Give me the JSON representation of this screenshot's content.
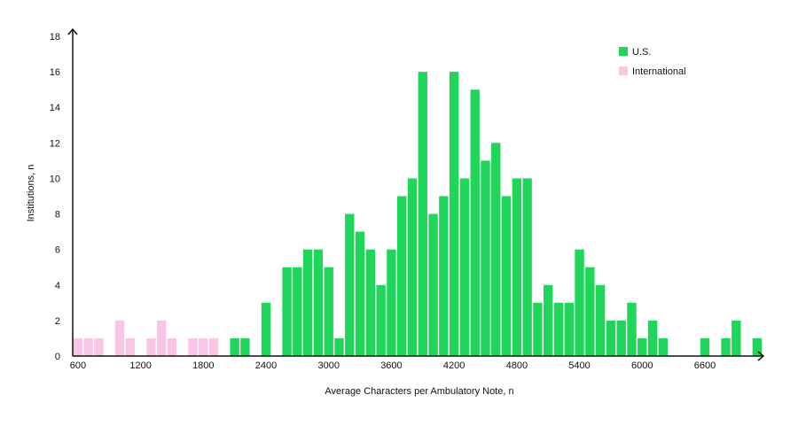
{
  "chart_data": {
    "type": "bar",
    "title": "",
    "xlabel": "Average Characters per Ambulatory Note, n",
    "ylabel": "Institutions, n",
    "xlim": [
      550,
      7050
    ],
    "ylim": [
      0,
      18
    ],
    "bin_width": 100,
    "x_ticks": [
      {
        "value": 600,
        "label": "600"
      },
      {
        "value": 1200,
        "label": "1200"
      },
      {
        "value": 1800,
        "label": "1800"
      },
      {
        "value": 2400,
        "label": "2400"
      },
      {
        "value": 3000,
        "label": "3000"
      },
      {
        "value": 3600,
        "label": "3600"
      },
      {
        "value": 4200,
        "label": "4200"
      },
      {
        "value": 4800,
        "label": "4800"
      },
      {
        "value": 5400,
        "label": "5400"
      },
      {
        "value": 6000,
        "label": "6000"
      },
      {
        "value": 6600,
        "label": "6600"
      }
    ],
    "y_ticks": [
      {
        "value": 0,
        "label": "0"
      },
      {
        "value": 2,
        "label": "2"
      },
      {
        "value": 4,
        "label": "4"
      },
      {
        "value": 6,
        "label": "6"
      },
      {
        "value": 8,
        "label": "8"
      },
      {
        "value": 10,
        "label": "10"
      },
      {
        "value": 12,
        "label": "12"
      },
      {
        "value": 14,
        "label": "14"
      },
      {
        "value": 16,
        "label": "16"
      },
      {
        "value": 18,
        "label": "18"
      }
    ],
    "legend_position": "top-right",
    "series": [
      {
        "name": "U.S.",
        "color": "#1fd65a",
        "x": [
          2100,
          2200,
          2400,
          2600,
          2700,
          2800,
          2900,
          3000,
          3100,
          3200,
          3300,
          3400,
          3500,
          3600,
          3700,
          3800,
          3900,
          4000,
          4100,
          4200,
          4300,
          4400,
          4500,
          4600,
          4700,
          4800,
          4900,
          5000,
          5100,
          5200,
          5300,
          5400,
          5500,
          5600,
          5700,
          5800,
          5900,
          6000,
          6100,
          6200,
          6600,
          6800,
          6900,
          7100
        ],
        "values": [
          1,
          1,
          3,
          5,
          5,
          6,
          6,
          5,
          1,
          8,
          7,
          6,
          4,
          6,
          9,
          10,
          16,
          8,
          9,
          16,
          10,
          15,
          11,
          12,
          9,
          10,
          10,
          3,
          4,
          3,
          3,
          6,
          5,
          4,
          2,
          2,
          3,
          1,
          2,
          1,
          1,
          1,
          2,
          1
        ]
      },
      {
        "name": "International",
        "color": "#f9c6e6",
        "x": [
          600,
          700,
          800,
          1000,
          1100,
          1300,
          1400,
          1500,
          1700,
          1800,
          1900
        ],
        "values": [
          1,
          1,
          1,
          2,
          1,
          1,
          2,
          1,
          1,
          1,
          1
        ]
      }
    ]
  }
}
